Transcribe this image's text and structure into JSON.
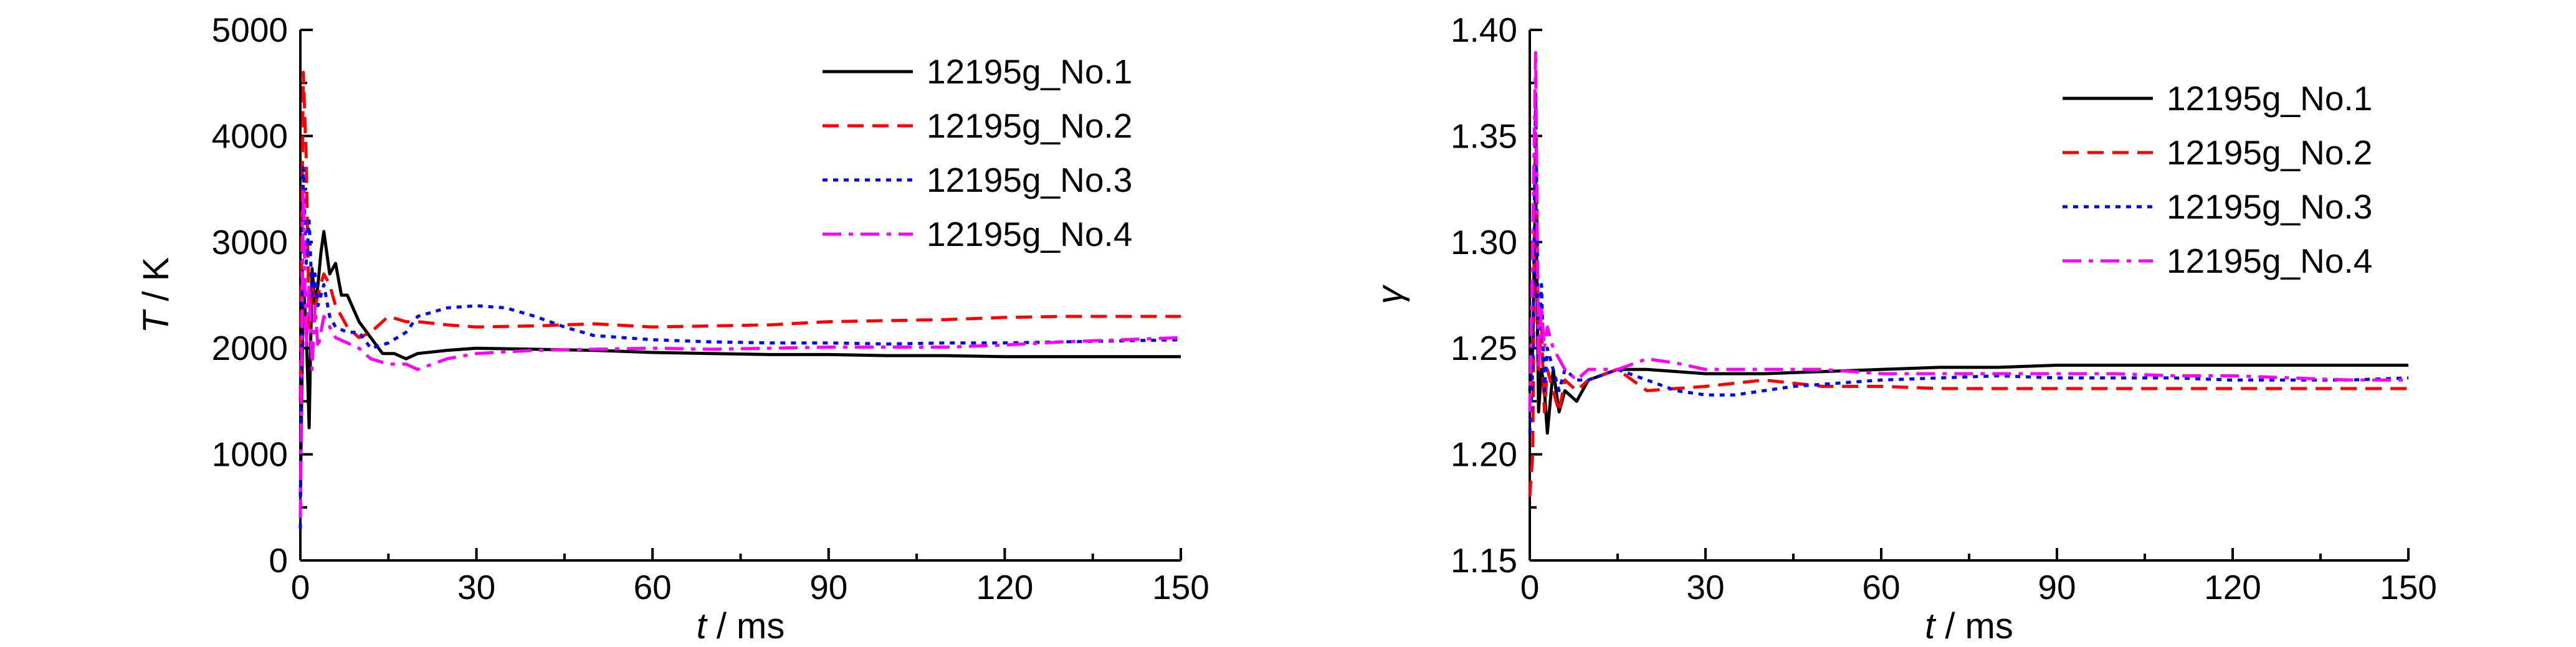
{
  "chart_data": [
    {
      "type": "line",
      "xlabel": {
        "var": "t",
        "unit": " / ms"
      },
      "ylabel": {
        "var": "T",
        "unit": " / K"
      },
      "xlim": [
        0,
        150
      ],
      "ylim": [
        0,
        5000
      ],
      "xticks": [
        0,
        30,
        60,
        90,
        120,
        150
      ],
      "yticks": [
        0,
        1000,
        2000,
        3000,
        4000,
        5000
      ],
      "grid": false,
      "legend": "top-right",
      "series": [
        {
          "name": "12195g_No.1",
          "color": "#000000",
          "dash": "solid",
          "x": [
            0,
            0.5,
            1,
            1.5,
            2,
            2.5,
            3,
            3.5,
            4,
            5,
            6,
            7,
            8,
            10,
            12,
            14,
            16,
            18,
            20,
            25,
            30,
            40,
            50,
            60,
            70,
            80,
            90,
            100,
            110,
            120,
            130,
            140,
            150
          ],
          "y": [
            600,
            2600,
            2200,
            1250,
            2750,
            2400,
            2600,
            2900,
            3100,
            2700,
            2800,
            2500,
            2500,
            2250,
            2100,
            1950,
            1950,
            1900,
            1950,
            1980,
            2000,
            1990,
            1980,
            1960,
            1950,
            1940,
            1940,
            1930,
            1930,
            1920,
            1920,
            1920,
            1920
          ]
        },
        {
          "name": "12195g_No.2",
          "color": "#ff0000",
          "dash": "dashed",
          "x": [
            0,
            0.5,
            1,
            1.5,
            2,
            2.5,
            3,
            4,
            5,
            6,
            8,
            10,
            12,
            15,
            18,
            20,
            25,
            30,
            40,
            50,
            60,
            70,
            80,
            90,
            100,
            110,
            120,
            130,
            140,
            150
          ],
          "y": [
            1500,
            4600,
            3800,
            2200,
            2600,
            2400,
            2500,
            2700,
            2600,
            2400,
            2200,
            2100,
            2150,
            2300,
            2250,
            2250,
            2220,
            2200,
            2210,
            2230,
            2200,
            2210,
            2220,
            2250,
            2260,
            2270,
            2290,
            2300,
            2300,
            2300
          ]
        },
        {
          "name": "12195g_No.3",
          "color": "#0000ff",
          "dash": "dotted",
          "x": [
            0,
            0.5,
            1,
            1.5,
            2,
            2.5,
            3,
            4,
            5,
            6,
            8,
            10,
            12,
            15,
            18,
            20,
            25,
            30,
            35,
            40,
            45,
            50,
            60,
            70,
            80,
            90,
            100,
            110,
            120,
            130,
            140,
            150
          ],
          "y": [
            300,
            3700,
            2800,
            3200,
            2500,
            2700,
            2400,
            2600,
            2300,
            2200,
            2150,
            2150,
            2000,
            2050,
            2150,
            2300,
            2380,
            2400,
            2380,
            2300,
            2200,
            2120,
            2080,
            2060,
            2050,
            2050,
            2040,
            2050,
            2050,
            2060,
            2070,
            2080
          ]
        },
        {
          "name": "12195g_No.4",
          "color": "#ff00ff",
          "dash": "dashdot",
          "x": [
            0,
            0.5,
            1,
            1.5,
            2,
            2.5,
            3,
            4,
            5,
            6,
            8,
            10,
            12,
            15,
            18,
            20,
            25,
            30,
            40,
            50,
            60,
            70,
            80,
            90,
            100,
            110,
            120,
            130,
            140,
            150
          ],
          "y": [
            400,
            3500,
            2000,
            2600,
            1800,
            2400,
            2000,
            2300,
            2200,
            2100,
            2050,
            2000,
            1900,
            1850,
            1850,
            1800,
            1900,
            1950,
            1980,
            1990,
            2000,
            1990,
            2000,
            2010,
            2010,
            2010,
            2030,
            2060,
            2080,
            2100
          ]
        }
      ]
    },
    {
      "type": "line",
      "xlabel": {
        "var": "t",
        "unit": " / ms"
      },
      "ylabel": {
        "var": "γ",
        "unit": ""
      },
      "xlim": [
        0,
        150
      ],
      "ylim": [
        1.15,
        1.4
      ],
      "xticks": [
        0,
        30,
        60,
        90,
        120,
        150
      ],
      "yticks": [
        1.15,
        1.2,
        1.25,
        1.3,
        1.35,
        1.4
      ],
      "ytick_labels": [
        "1.15",
        "1.20",
        "1.25",
        "1.30",
        "1.35",
        "1.40"
      ],
      "grid": false,
      "legend": "top-right",
      "series": [
        {
          "name": "12195g_No.1",
          "color": "#000000",
          "dash": "solid",
          "x": [
            0,
            0.5,
            1,
            1.5,
            2,
            2.5,
            3,
            4,
            5,
            6,
            8,
            10,
            15,
            20,
            30,
            40,
            50,
            60,
            70,
            80,
            90,
            100,
            110,
            120,
            130,
            140,
            150
          ],
          "y": [
            1.23,
            1.25,
            1.33,
            1.22,
            1.24,
            1.23,
            1.21,
            1.24,
            1.22,
            1.23,
            1.225,
            1.235,
            1.24,
            1.24,
            1.238,
            1.238,
            1.239,
            1.24,
            1.241,
            1.241,
            1.242,
            1.242,
            1.242,
            1.242,
            1.242,
            1.242,
            1.242
          ]
        },
        {
          "name": "12195g_No.2",
          "color": "#ff0000",
          "dash": "dashed",
          "x": [
            0,
            0.5,
            1,
            1.5,
            2,
            2.5,
            3,
            4,
            5,
            6,
            8,
            10,
            15,
            20,
            30,
            40,
            50,
            60,
            70,
            80,
            90,
            100,
            110,
            120,
            130,
            140,
            150
          ],
          "y": [
            1.18,
            1.2,
            1.37,
            1.24,
            1.26,
            1.22,
            1.24,
            1.23,
            1.22,
            1.235,
            1.23,
            1.235,
            1.24,
            1.23,
            1.232,
            1.235,
            1.232,
            1.232,
            1.231,
            1.231,
            1.231,
            1.231,
            1.231,
            1.231,
            1.231,
            1.231,
            1.231
          ]
        },
        {
          "name": "12195g_No.3",
          "color": "#0000ff",
          "dash": "dotted",
          "x": [
            0,
            0.5,
            1,
            1.5,
            2,
            2.5,
            3,
            4,
            5,
            6,
            8,
            10,
            15,
            20,
            25,
            30,
            35,
            40,
            45,
            50,
            60,
            70,
            80,
            90,
            100,
            110,
            120,
            130,
            140,
            150
          ],
          "y": [
            1.21,
            1.24,
            1.37,
            1.25,
            1.28,
            1.23,
            1.25,
            1.24,
            1.23,
            1.24,
            1.235,
            1.235,
            1.24,
            1.235,
            1.23,
            1.228,
            1.228,
            1.23,
            1.232,
            1.233,
            1.235,
            1.236,
            1.237,
            1.236,
            1.236,
            1.236,
            1.235,
            1.235,
            1.235,
            1.236
          ]
        },
        {
          "name": "12195g_No.4",
          "color": "#ff00ff",
          "dash": "dashdot",
          "x": [
            0,
            0.5,
            1,
            1.5,
            2,
            2.5,
            3,
            4,
            5,
            6,
            8,
            10,
            15,
            20,
            25,
            30,
            40,
            50,
            60,
            70,
            80,
            90,
            100,
            110,
            120,
            130,
            140,
            150
          ],
          "y": [
            1.22,
            1.3,
            1.39,
            1.24,
            1.27,
            1.25,
            1.26,
            1.25,
            1.245,
            1.24,
            1.235,
            1.24,
            1.24,
            1.245,
            1.243,
            1.24,
            1.24,
            1.24,
            1.238,
            1.238,
            1.238,
            1.238,
            1.238,
            1.237,
            1.237,
            1.236,
            1.235,
            1.235
          ]
        }
      ]
    }
  ]
}
